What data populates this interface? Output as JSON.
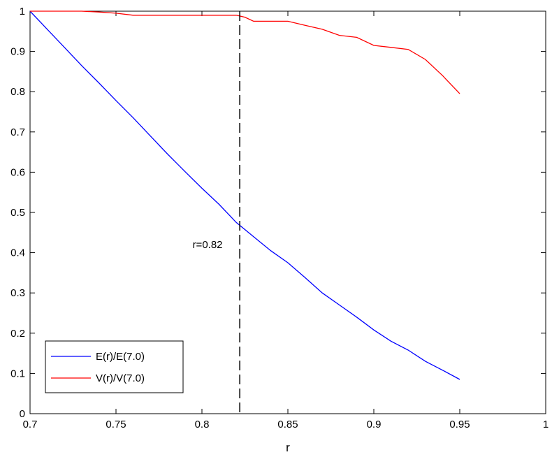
{
  "chart_data": {
    "type": "line",
    "title": "",
    "xlabel": "r",
    "ylabel": "",
    "xlim": [
      0.7,
      1.0
    ],
    "ylim": [
      0,
      1
    ],
    "xticks": [
      "0.7",
      "0.75",
      "0.8",
      "0.85",
      "0.9",
      "0.95",
      "1"
    ],
    "yticks": [
      "0",
      "0.1",
      "0.2",
      "0.3",
      "0.4",
      "0.5",
      "0.6",
      "0.7",
      "0.8",
      "0.9",
      "1"
    ],
    "grid": false,
    "legend_position": "bottom-left",
    "series": [
      {
        "name": "E(r)/E(7.0)",
        "color": "#0000ff",
        "x": [
          0.7,
          0.71,
          0.72,
          0.73,
          0.74,
          0.75,
          0.76,
          0.77,
          0.78,
          0.79,
          0.8,
          0.81,
          0.82,
          0.83,
          0.84,
          0.85,
          0.86,
          0.87,
          0.88,
          0.89,
          0.9,
          0.91,
          0.92,
          0.93,
          0.94,
          0.95
        ],
        "y": [
          1.0,
          0.955,
          0.91,
          0.865,
          0.822,
          0.778,
          0.735,
          0.69,
          0.645,
          0.602,
          0.56,
          0.52,
          0.475,
          0.44,
          0.405,
          0.375,
          0.338,
          0.3,
          0.27,
          0.24,
          0.208,
          0.18,
          0.158,
          0.13,
          0.108,
          0.085
        ]
      },
      {
        "name": "V(r)/V(7.0)",
        "color": "#ff0000",
        "x": [
          0.7,
          0.71,
          0.72,
          0.73,
          0.74,
          0.75,
          0.76,
          0.77,
          0.78,
          0.79,
          0.8,
          0.81,
          0.82,
          0.825,
          0.83,
          0.84,
          0.85,
          0.86,
          0.87,
          0.88,
          0.89,
          0.9,
          0.91,
          0.92,
          0.93,
          0.94,
          0.95
        ],
        "y": [
          1.0,
          1.0,
          1.0,
          1.0,
          0.998,
          0.995,
          0.99,
          0.99,
          0.99,
          0.99,
          0.99,
          0.99,
          0.99,
          0.985,
          0.975,
          0.975,
          0.975,
          0.965,
          0.955,
          0.94,
          0.935,
          0.915,
          0.91,
          0.905,
          0.88,
          0.84,
          0.795
        ]
      }
    ],
    "reference_line": {
      "x": 0.822,
      "style": "dashed",
      "color": "#000000"
    },
    "annotation": {
      "text": "r=0.82",
      "x": 0.812,
      "y": 0.42
    }
  }
}
